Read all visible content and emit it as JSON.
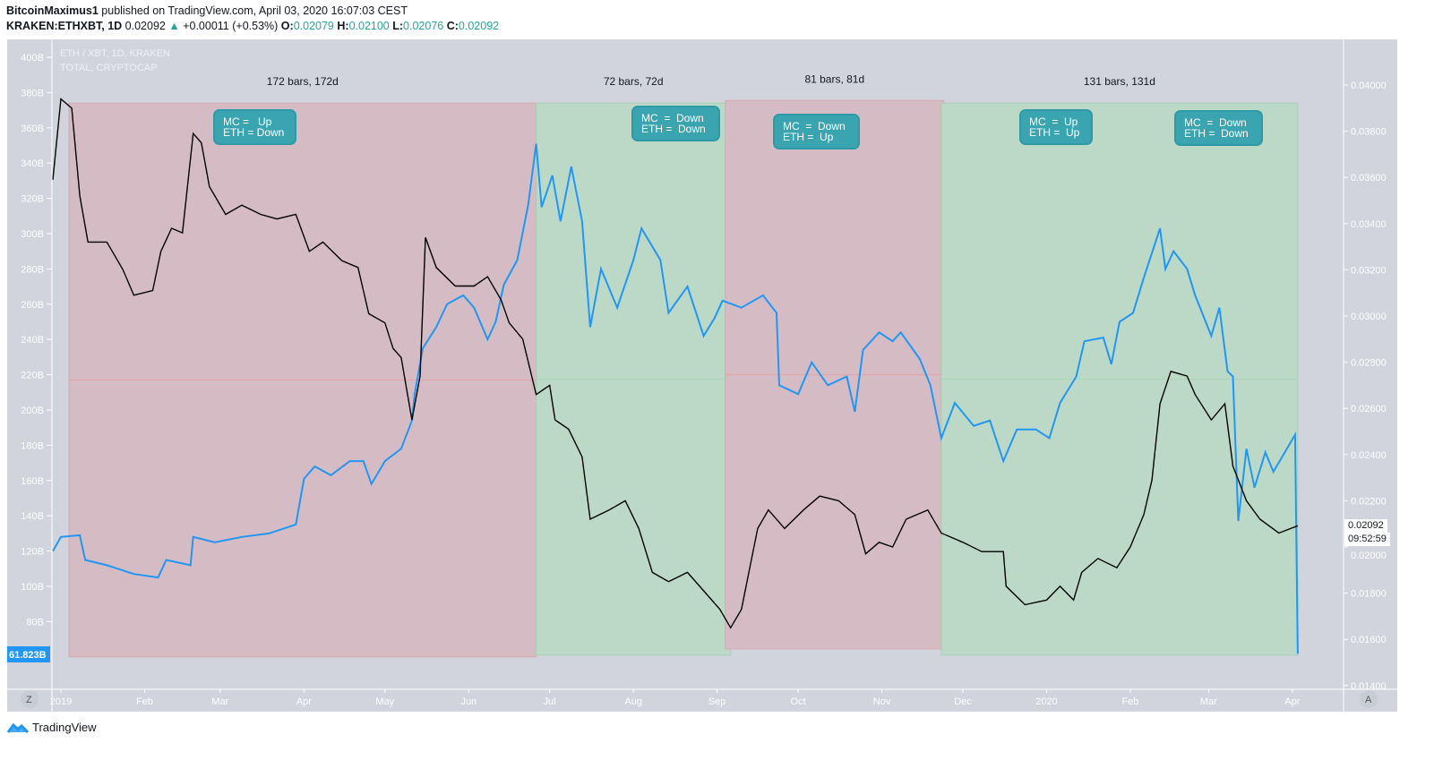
{
  "header": {
    "author": "BitcoinMaximus1",
    "published": "published on TradingView.com, April 03, 2020 16:07:03 CEST",
    "symbol": "KRAKEN:ETHXBT, 1D",
    "last": "0.02092",
    "change": "+0.00011 (+0.53%)",
    "o_label": "O:",
    "o": "0.02079",
    "h_label": "H:",
    "h": "0.02100",
    "l_label": "L:",
    "l": "0.02076",
    "c_label": "C:",
    "c": "0.02092"
  },
  "legend": {
    "series1": "ETH / XBT, 1D, KRAKEN",
    "series2": "TOTAL, CRYPTOCAP"
  },
  "price_label": "0.02092",
  "countdown": "09:52:59",
  "left_last_label": "61.823B",
  "bottom": {
    "z_button": "Z",
    "a_button": "A",
    "brand": "TradingView"
  },
  "colors": {
    "background": "#d1d4dc",
    "total_line": "#2196f3",
    "eth_line": "#000000",
    "red_zone": "#d5bcc4",
    "green_zone": "#bcd9c8",
    "callout": "#3aa5b0",
    "up": "#26a69a"
  },
  "callouts": [
    {
      "text": "MC =   Up\nETH = Down"
    },
    {
      "text": "MC  =  Down\nETH =  Down"
    },
    {
      "text": "MC  =  Down\nETH =  Up"
    },
    {
      "text": "MC  =  Up\nETH =  Up"
    },
    {
      "text": "MC  =  Down\nETH =  Down"
    }
  ],
  "chart_data": {
    "type": "line",
    "left_axis": {
      "unit": "B",
      "ylim": [
        60,
        410
      ],
      "ticks": [
        "400B",
        "380B",
        "360B",
        "340B",
        "320B",
        "300B",
        "280B",
        "260B",
        "240B",
        "220B",
        "200B",
        "180B",
        "160B",
        "140B",
        "120B",
        "100B",
        "80B"
      ]
    },
    "right_axis": {
      "ylim": [
        0.0138,
        0.0418
      ],
      "ticks": [
        "0.04000",
        "0.03800",
        "0.03600",
        "0.03400",
        "0.03200",
        "0.03000",
        "0.02800",
        "0.02600",
        "0.02400",
        "0.02200",
        "0.02000",
        "0.01800",
        "0.01600",
        "0.01400"
      ]
    },
    "x_ticks": [
      {
        "label": "2019",
        "date": "2019-01-01"
      },
      {
        "label": "Feb",
        "date": "2019-02-01"
      },
      {
        "label": "Mar",
        "date": "2019-03-01"
      },
      {
        "label": "Apr",
        "date": "2019-04-01"
      },
      {
        "label": "May",
        "date": "2019-05-01"
      },
      {
        "label": "Jun",
        "date": "2019-06-01"
      },
      {
        "label": "Jul",
        "date": "2019-07-01"
      },
      {
        "label": "Aug",
        "date": "2019-08-01"
      },
      {
        "label": "Sep",
        "date": "2019-09-01"
      },
      {
        "label": "Oct",
        "date": "2019-10-01"
      },
      {
        "label": "Nov",
        "date": "2019-11-01"
      },
      {
        "label": "Dec",
        "date": "2019-12-01"
      },
      {
        "label": "2020",
        "date": "2020-01-01"
      },
      {
        "label": "Feb",
        "date": "2020-02-01"
      },
      {
        "label": "Mar",
        "date": "2020-03-01"
      },
      {
        "label": "Apr",
        "date": "2020-04-01"
      }
    ],
    "zones": [
      {
        "type": "red",
        "start": "2019-01-04",
        "end": "2019-06-26",
        "top": 374,
        "bottom": 60,
        "label": "172 bars, 172d"
      },
      {
        "type": "green",
        "start": "2019-06-26",
        "end": "2019-09-06",
        "top": 374,
        "bottom": 61,
        "label": "72 bars, 72d"
      },
      {
        "type": "red",
        "start": "2019-09-04",
        "end": "2019-11-24",
        "top": 375.5,
        "bottom": 64.5,
        "label": "81 bars, 81d"
      },
      {
        "type": "green",
        "start": "2019-11-23",
        "end": "2020-04-03",
        "top": 374,
        "bottom": 61,
        "label": "131 bars, 131d"
      }
    ],
    "series": [
      {
        "name": "TOTAL, CRYPTOCAP",
        "axis": "left",
        "points": [
          [
            "2018-12-29",
            120
          ],
          [
            "2019-01-01",
            128
          ],
          [
            "2019-01-08",
            129
          ],
          [
            "2019-01-10",
            115
          ],
          [
            "2019-01-18",
            112
          ],
          [
            "2019-01-28",
            107
          ],
          [
            "2019-02-06",
            105
          ],
          [
            "2019-02-09",
            115
          ],
          [
            "2019-02-18",
            112
          ],
          [
            "2019-02-19",
            128
          ],
          [
            "2019-02-27",
            125
          ],
          [
            "2019-03-09",
            128
          ],
          [
            "2019-03-19",
            130
          ],
          [
            "2019-03-29",
            135
          ],
          [
            "2019-04-01",
            161
          ],
          [
            "2019-04-05",
            168
          ],
          [
            "2019-04-11",
            163
          ],
          [
            "2019-04-18",
            171
          ],
          [
            "2019-04-23",
            171
          ],
          [
            "2019-04-26",
            158
          ],
          [
            "2019-05-01",
            171
          ],
          [
            "2019-05-07",
            178
          ],
          [
            "2019-05-11",
            194
          ],
          [
            "2019-05-12",
            209
          ],
          [
            "2019-05-15",
            235
          ],
          [
            "2019-05-20",
            247
          ],
          [
            "2019-05-24",
            260
          ],
          [
            "2019-05-30",
            265
          ],
          [
            "2019-06-03",
            258
          ],
          [
            "2019-06-08",
            240
          ],
          [
            "2019-06-11",
            250
          ],
          [
            "2019-06-14",
            271
          ],
          [
            "2019-06-19",
            285
          ],
          [
            "2019-06-23",
            316
          ],
          [
            "2019-06-26",
            351
          ],
          [
            "2019-06-28",
            315
          ],
          [
            "2019-07-02",
            333
          ],
          [
            "2019-07-05",
            307
          ],
          [
            "2019-07-09",
            338
          ],
          [
            "2019-07-13",
            307
          ],
          [
            "2019-07-16",
            247
          ],
          [
            "2019-07-20",
            280
          ],
          [
            "2019-07-26",
            258
          ],
          [
            "2019-08-01",
            285
          ],
          [
            "2019-08-04",
            303
          ],
          [
            "2019-08-11",
            285
          ],
          [
            "2019-08-14",
            255
          ],
          [
            "2019-08-21",
            270
          ],
          [
            "2019-08-27",
            242
          ],
          [
            "2019-08-31",
            252
          ],
          [
            "2019-09-03",
            262
          ],
          [
            "2019-09-10",
            258
          ],
          [
            "2019-09-18",
            265
          ],
          [
            "2019-09-23",
            255
          ],
          [
            "2019-09-24",
            214
          ],
          [
            "2019-10-01",
            209
          ],
          [
            "2019-10-06",
            227
          ],
          [
            "2019-10-12",
            214
          ],
          [
            "2019-10-19",
            219
          ],
          [
            "2019-10-22",
            199
          ],
          [
            "2019-10-25",
            234
          ],
          [
            "2019-10-31",
            244
          ],
          [
            "2019-11-05",
            239
          ],
          [
            "2019-11-08",
            244
          ],
          [
            "2019-11-15",
            229
          ],
          [
            "2019-11-19",
            214
          ],
          [
            "2019-11-23",
            184
          ],
          [
            "2019-11-28",
            204
          ],
          [
            "2019-12-05",
            191
          ],
          [
            "2019-12-11",
            194
          ],
          [
            "2019-12-16",
            171
          ],
          [
            "2019-12-21",
            189
          ],
          [
            "2019-12-28",
            189
          ],
          [
            "2020-01-02",
            184
          ],
          [
            "2020-01-06",
            204
          ],
          [
            "2020-01-12",
            219
          ],
          [
            "2020-01-15",
            239
          ],
          [
            "2020-01-22",
            241
          ],
          [
            "2020-01-25",
            226
          ],
          [
            "2020-01-28",
            250
          ],
          [
            "2020-02-02",
            255
          ],
          [
            "2020-02-06",
            275
          ],
          [
            "2020-02-12",
            303
          ],
          [
            "2020-02-14",
            280
          ],
          [
            "2020-02-17",
            290
          ],
          [
            "2020-02-22",
            280
          ],
          [
            "2020-02-25",
            265
          ],
          [
            "2020-03-02",
            242
          ],
          [
            "2020-03-05",
            258
          ],
          [
            "2020-03-08",
            222
          ],
          [
            "2020-03-10",
            219
          ],
          [
            "2020-03-12",
            137
          ],
          [
            "2020-03-15",
            178
          ],
          [
            "2020-03-18",
            156
          ],
          [
            "2020-03-22",
            176
          ],
          [
            "2020-03-25",
            165
          ],
          [
            "2020-03-30",
            178
          ],
          [
            "2020-04-02",
            186
          ],
          [
            "2020-04-03",
            61.823
          ]
        ]
      },
      {
        "name": "ETH / XBT, 1D, KRAKEN",
        "axis": "right",
        "points": [
          [
            "2018-12-29",
            0.0359
          ],
          [
            "2019-01-01",
            0.0394
          ],
          [
            "2019-01-05",
            0.039
          ],
          [
            "2019-01-08",
            0.0352
          ],
          [
            "2019-01-11",
            0.0332
          ],
          [
            "2019-01-18",
            0.0332
          ],
          [
            "2019-01-24",
            0.032
          ],
          [
            "2019-01-28",
            0.0309
          ],
          [
            "2019-02-04",
            0.0311
          ],
          [
            "2019-02-07",
            0.0328
          ],
          [
            "2019-02-11",
            0.0338
          ],
          [
            "2019-02-15",
            0.0336
          ],
          [
            "2019-02-19",
            0.0379
          ],
          [
            "2019-02-22",
            0.0375
          ],
          [
            "2019-02-25",
            0.0356
          ],
          [
            "2019-03-03",
            0.0344
          ],
          [
            "2019-03-09",
            0.0348
          ],
          [
            "2019-03-16",
            0.0344
          ],
          [
            "2019-03-22",
            0.0342
          ],
          [
            "2019-03-29",
            0.0344
          ],
          [
            "2019-04-03",
            0.0328
          ],
          [
            "2019-04-08",
            0.0332
          ],
          [
            "2019-04-15",
            0.0324
          ],
          [
            "2019-04-21",
            0.0321
          ],
          [
            "2019-04-25",
            0.0301
          ],
          [
            "2019-05-01",
            0.0297
          ],
          [
            "2019-05-04",
            0.0286
          ],
          [
            "2019-05-07",
            0.0282
          ],
          [
            "2019-05-11",
            0.0255
          ],
          [
            "2019-05-14",
            0.0274
          ],
          [
            "2019-05-16",
            0.0334
          ],
          [
            "2019-05-20",
            0.0321
          ],
          [
            "2019-05-27",
            0.0313
          ],
          [
            "2019-06-03",
            0.0313
          ],
          [
            "2019-06-08",
            0.0317
          ],
          [
            "2019-06-13",
            0.0307
          ],
          [
            "2019-06-16",
            0.0297
          ],
          [
            "2019-06-21",
            0.029
          ],
          [
            "2019-06-26",
            0.0266
          ],
          [
            "2019-07-01",
            0.027
          ],
          [
            "2019-07-03",
            0.0255
          ],
          [
            "2019-07-08",
            0.0251
          ],
          [
            "2019-07-13",
            0.0239
          ],
          [
            "2019-07-16",
            0.0212
          ],
          [
            "2019-07-23",
            0.0216
          ],
          [
            "2019-07-29",
            0.022
          ],
          [
            "2019-08-03",
            0.0208
          ],
          [
            "2019-08-08",
            0.0189
          ],
          [
            "2019-08-14",
            0.0185
          ],
          [
            "2019-08-21",
            0.0189
          ],
          [
            "2019-08-27",
            0.0181
          ],
          [
            "2019-09-02",
            0.0173
          ],
          [
            "2019-09-06",
            0.0165
          ],
          [
            "2019-09-10",
            0.0173
          ],
          [
            "2019-09-16",
            0.0208
          ],
          [
            "2019-09-20",
            0.0216
          ],
          [
            "2019-09-26",
            0.0208
          ],
          [
            "2019-10-03",
            0.0216
          ],
          [
            "2019-10-09",
            0.0222
          ],
          [
            "2019-10-16",
            0.022
          ],
          [
            "2019-10-22",
            0.0214
          ],
          [
            "2019-10-26",
            0.0197
          ],
          [
            "2019-10-31",
            0.0202
          ],
          [
            "2019-11-05",
            0.02
          ],
          [
            "2019-11-10",
            0.0212
          ],
          [
            "2019-11-18",
            0.0216
          ],
          [
            "2019-11-23",
            0.0206
          ],
          [
            "2019-12-01",
            0.0202
          ],
          [
            "2019-12-08",
            0.0198
          ],
          [
            "2019-12-16",
            0.0198
          ],
          [
            "2019-12-17",
            0.0183
          ],
          [
            "2019-12-24",
            0.0175
          ],
          [
            "2020-01-01",
            0.0177
          ],
          [
            "2020-01-06",
            0.0183
          ],
          [
            "2020-01-11",
            0.0177
          ],
          [
            "2020-01-14",
            0.0189
          ],
          [
            "2020-01-20",
            0.0195
          ],
          [
            "2020-01-27",
            0.0191
          ],
          [
            "2020-02-01",
            0.02
          ],
          [
            "2020-02-06",
            0.0214
          ],
          [
            "2020-02-09",
            0.0229
          ],
          [
            "2020-02-12",
            0.0262
          ],
          [
            "2020-02-16",
            0.0276
          ],
          [
            "2020-02-22",
            0.0274
          ],
          [
            "2020-02-25",
            0.0266
          ],
          [
            "2020-03-02",
            0.0255
          ],
          [
            "2020-03-07",
            0.0262
          ],
          [
            "2020-03-10",
            0.0235
          ],
          [
            "2020-03-15",
            0.022
          ],
          [
            "2020-03-20",
            0.0212
          ],
          [
            "2020-03-27",
            0.0206
          ],
          [
            "2020-04-03",
            0.02092
          ]
        ]
      }
    ]
  }
}
